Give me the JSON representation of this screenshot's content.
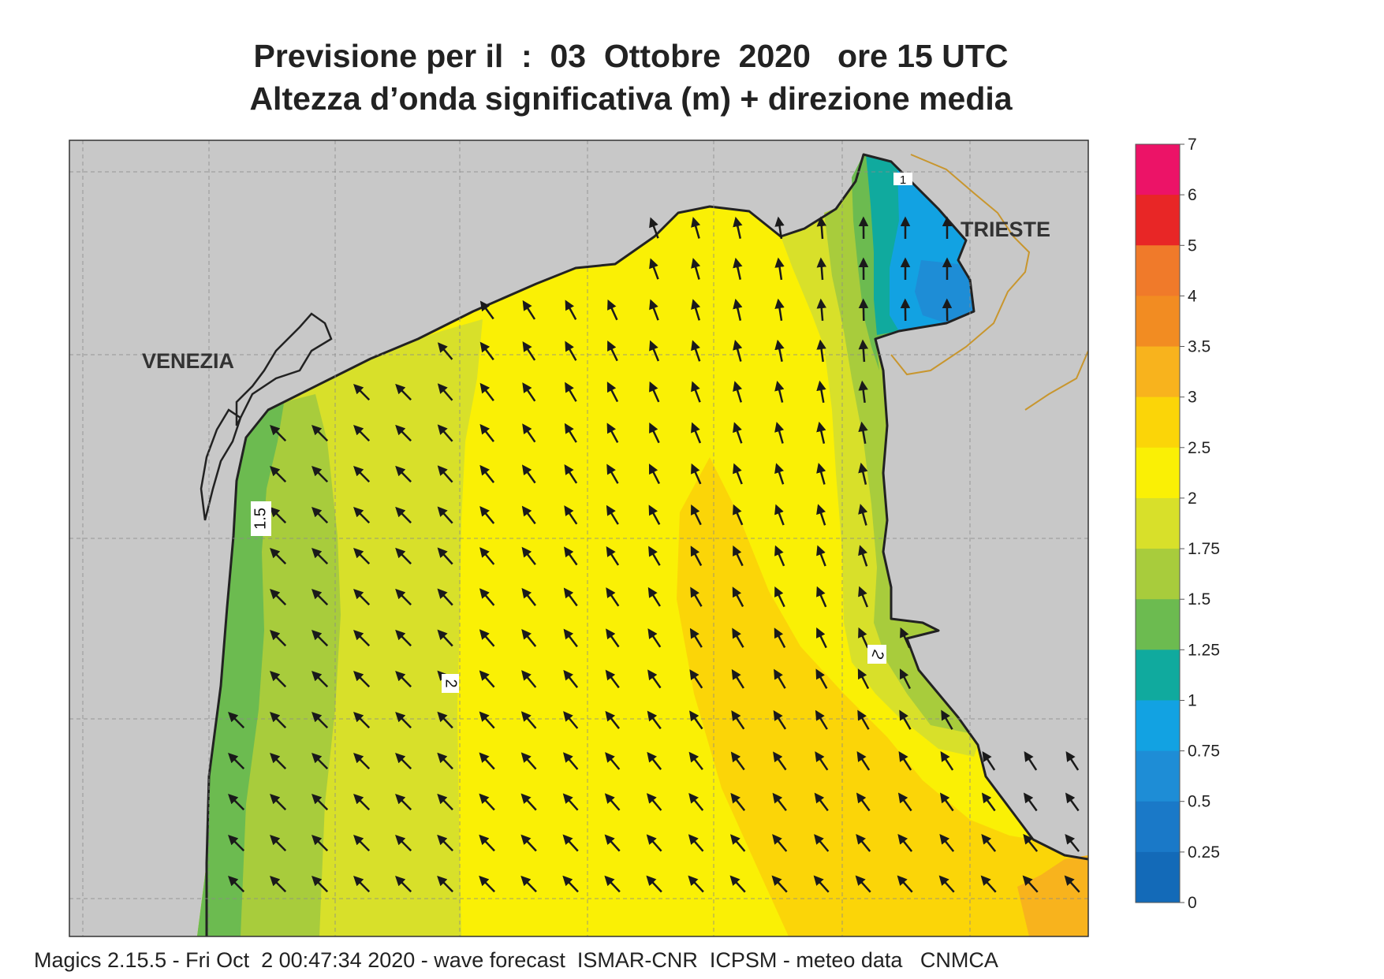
{
  "title": {
    "line1": "Previsione per il  :  03  Ottobre  2020   ore 15 UTC",
    "line2": "Altezza d’onda significativa (m) + direzione media"
  },
  "map": {
    "places": {
      "venezia": "VENEZIA",
      "trieste": "TRIESTE"
    },
    "contour_labels": {
      "c1": "1",
      "c15": "1.5",
      "c2a": "2",
      "c2b": "2"
    },
    "colors": {
      "land": "#c8c8c8",
      "coast": "#222222",
      "border": "#c8962e",
      "grid": "#8a8a8a",
      "arrow": "#1a1a1a"
    },
    "wave_direction": "NW"
  },
  "colorbar": {
    "ticks": [
      "7",
      "6",
      "5",
      "4",
      "3.5",
      "3",
      "2.5",
      "2",
      "1.75",
      "1.5",
      "1.25",
      "1",
      "0.75",
      "0.5",
      "0.25",
      "0"
    ],
    "colors": [
      "#ec1367",
      "#e82626",
      "#f07a2a",
      "#f28c22",
      "#f8b31d",
      "#fbd508",
      "#faf005",
      "#d8e02a",
      "#a8cc3c",
      "#6cbb50",
      "#10aa9e",
      "#12a2e2",
      "#1e8dd6",
      "#1a79c8",
      "#136ab8"
    ]
  },
  "footer": "Magics 2.15.5 - Fri Oct  2 00:47:34 2020 - wave forecast  ISMAR-CNR  ICPSM - meteo data   CNMCA"
}
